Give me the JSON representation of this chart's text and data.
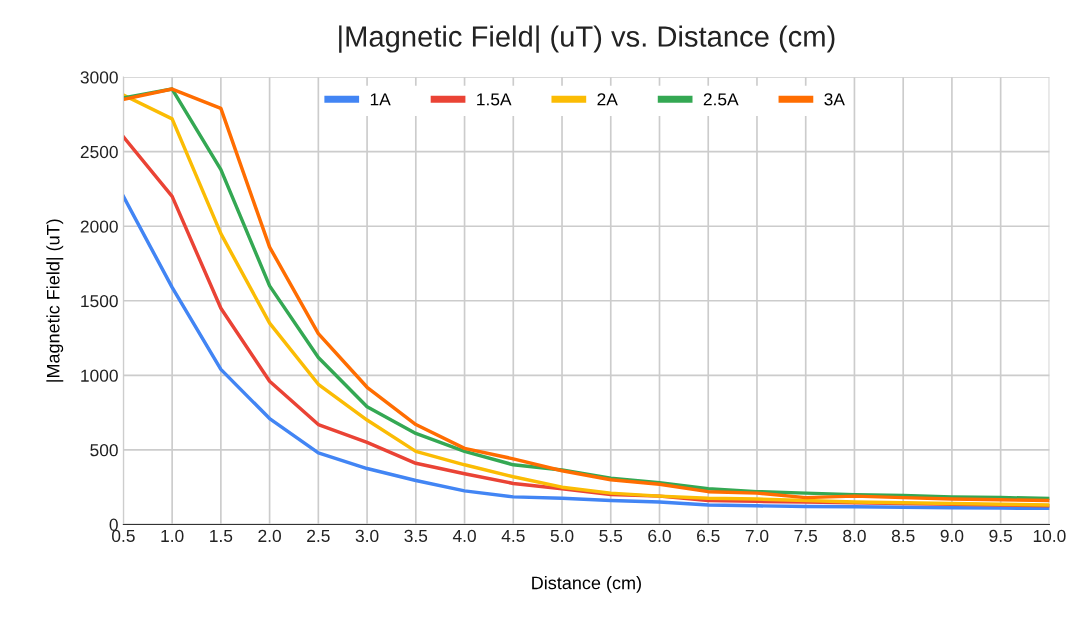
{
  "chart_data": {
    "type": "line",
    "title": "|Magnetic Field| (uT) vs. Distance (cm)",
    "xlabel": "Distance (cm)",
    "ylabel": "|Magnetic Field| (uT)",
    "categories": [
      "0.5",
      "1.0",
      "1.5",
      "2.0",
      "2.5",
      "3.0",
      "3.5",
      "4.0",
      "4.5",
      "5.0",
      "5.5",
      "6.0",
      "6.5",
      "7.0",
      "7.5",
      "8.0",
      "8.5",
      "9.0",
      "9.5",
      "10.0"
    ],
    "series": [
      {
        "name": "1A",
        "color": "#4285f4",
        "values": [
          2200,
          1590,
          1040,
          710,
          480,
          375,
          295,
          225,
          185,
          175,
          160,
          150,
          130,
          125,
          120,
          118,
          115,
          112,
          110,
          108
        ]
      },
      {
        "name": "1.5A",
        "color": "#ea4335",
        "values": [
          2600,
          2200,
          1450,
          960,
          670,
          550,
          410,
          340,
          275,
          240,
          200,
          190,
          160,
          155,
          150,
          145,
          140,
          135,
          130,
          125
        ]
      },
      {
        "name": "2A",
        "color": "#fbbc04",
        "values": [
          2880,
          2720,
          1950,
          1350,
          940,
          700,
          490,
          400,
          320,
          250,
          210,
          190,
          175,
          170,
          160,
          150,
          145,
          140,
          135,
          130
        ]
      },
      {
        "name": "2.5A",
        "color": "#34a853",
        "values": [
          2860,
          2920,
          2380,
          1600,
          1120,
          790,
          610,
          490,
          400,
          365,
          310,
          280,
          240,
          220,
          210,
          200,
          195,
          185,
          180,
          175
        ]
      },
      {
        "name": "3A",
        "color": "#ff6d01",
        "values": [
          2850,
          2920,
          2790,
          1860,
          1280,
          920,
          670,
          510,
          440,
          360,
          300,
          270,
          220,
          210,
          180,
          190,
          180,
          170,
          165,
          160
        ]
      }
    ],
    "ylim": [
      0,
      3000
    ],
    "yticks": [
      0,
      500,
      1000,
      1500,
      2000,
      2500,
      3000
    ],
    "grid": true,
    "legend": "top",
    "marker": "none",
    "line_style": "solid"
  }
}
